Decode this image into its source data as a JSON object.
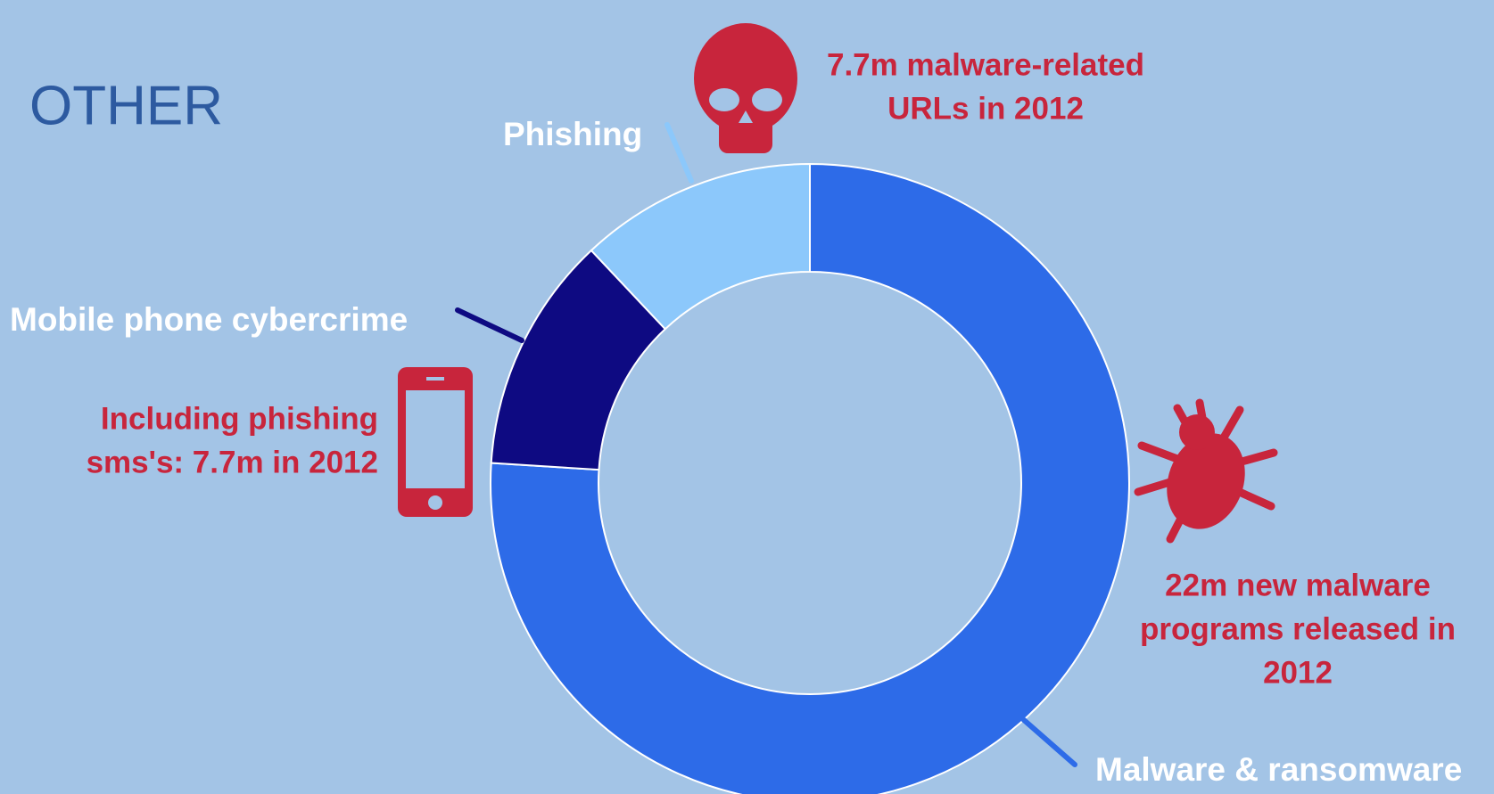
{
  "chart_data": {
    "type": "donut",
    "title": "OTHER",
    "series": [
      {
        "name": "Malware & ransomware",
        "color": "#2d6be8",
        "value": 76
      },
      {
        "name": "Mobile phone cybercrime",
        "color": "#0e0a82",
        "value": 12
      },
      {
        "name": "Phishing",
        "color": "#8cc8fb",
        "value": 12
      }
    ],
    "annotations": [
      {
        "lines": [
          "22m new malware",
          "programs released in",
          "2012"
        ]
      },
      {
        "lines": [
          "Including phishing",
          "sms's: 7.7m in 2012"
        ]
      },
      {
        "lines": [
          "7.7m malware-related",
          "URLs in 2012"
        ]
      }
    ]
  }
}
